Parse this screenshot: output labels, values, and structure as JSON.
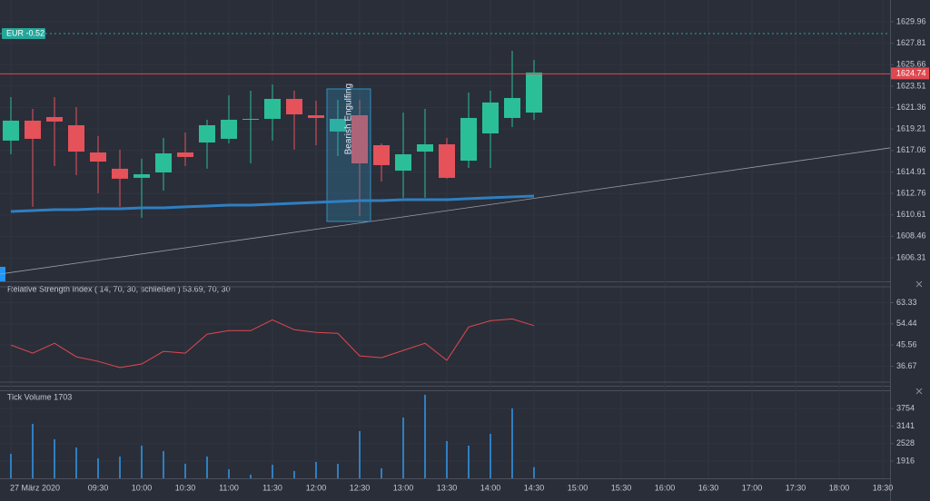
{
  "chart_data": [
    {
      "type": "candlestick",
      "categories": [
        "27 März 2020",
        null,
        null,
        null,
        "09:30",
        null,
        "10:00",
        null,
        "10:30",
        null,
        "11:00",
        null,
        "11:30",
        null,
        "12:00",
        null,
        "12:30",
        null,
        "13:00",
        null,
        "13:30",
        null,
        "14:00",
        null,
        "14:30",
        null,
        "15:00",
        null,
        "15:30",
        null,
        "16:00",
        null,
        "16:30",
        null,
        "17:00",
        null,
        "17:30",
        null,
        "18:00",
        null,
        "18:30"
      ],
      "open": [
        1618.05,
        1620.05,
        1620.41,
        1619.59,
        1616.86,
        1615.23,
        1614.32,
        1614.86,
        1616.86,
        1617.86,
        1618.23,
        1620.14,
        1620.23,
        1622.23,
        1620.59,
        1618.96,
        1620.59,
        1617.59,
        1615.04,
        1616.95,
        1617.68,
        1616.04,
        1618.77,
        1620.32,
        1620.86,
        null,
        null,
        null,
        null,
        null,
        null,
        null,
        null,
        null,
        null,
        null,
        null,
        null,
        null,
        null,
        null
      ],
      "high": [
        1622.41,
        1621.23,
        1622.41,
        1621.41,
        1618.5,
        1617.14,
        1616.23,
        1618.32,
        1618.86,
        1620.14,
        1622.59,
        1623.05,
        1623.68,
        1623.05,
        1622.05,
        1622.14,
        1622.14,
        1617.77,
        1620.86,
        1621.23,
        1618.32,
        1622.87,
        1623.05,
        1627.05,
        1626.14,
        null,
        null,
        null,
        null,
        null,
        null,
        null,
        null,
        null,
        null,
        null,
        null,
        null,
        null,
        null,
        null
      ],
      "low": [
        1616.68,
        1611.41,
        1615.5,
        1614.59,
        1612.77,
        1611.41,
        1610.31,
        1613.04,
        1615.5,
        1615.23,
        1617.77,
        1615.77,
        1618.05,
        1617.14,
        1617.59,
        1616.5,
        1610.5,
        1613.95,
        1612.32,
        1612.32,
        1614.23,
        1615.32,
        1615.32,
        1619.41,
        1620.14,
        null,
        null,
        null,
        null,
        null,
        null,
        null,
        null,
        null,
        null,
        null,
        null,
        null,
        null,
        null,
        null
      ],
      "close": [
        1620.05,
        1618.23,
        1619.96,
        1616.95,
        1615.95,
        1614.23,
        1614.68,
        1616.77,
        1616.41,
        1619.59,
        1620.14,
        1620.23,
        1622.23,
        1620.68,
        1620.32,
        1620.23,
        1615.77,
        1615.59,
        1616.68,
        1617.68,
        1614.32,
        1620.32,
        1621.87,
        1622.32,
        1624.87,
        null,
        null,
        null,
        null,
        null,
        null,
        null,
        null,
        null,
        null,
        null,
        null,
        null,
        null,
        null,
        null
      ],
      "up_color": "#2bbf97",
      "down_color": "#e5525a",
      "moving_average": {
        "color": "#2f7fc1",
        "values": [
          1610.95,
          1611.04,
          1611.13,
          1611.13,
          1611.22,
          1611.22,
          1611.31,
          1611.31,
          1611.41,
          1611.5,
          1611.59,
          1611.59,
          1611.68,
          1611.77,
          1611.86,
          1611.95,
          1612.04,
          1612.04,
          1612.13,
          1612.13,
          1612.13,
          1612.23,
          1612.32,
          1612.41,
          1612.5,
          null,
          null,
          null,
          null,
          null,
          null,
          null,
          null,
          null,
          null,
          null,
          null,
          null,
          null,
          null,
          null
        ]
      },
      "price_line": {
        "value": 1624.74,
        "color": "#e0484f"
      },
      "position_line": {
        "label": "EUR -0.52",
        "value": 1628.78,
        "color": "#26a69a"
      },
      "trend_line": {
        "start": 1604.68,
        "end": 1617.32,
        "color": "#9aa0aa"
      },
      "annotation": {
        "text": "Bearish Engulfing",
        "top": 1623.23,
        "bottom": 1609.95,
        "color": "#2f8fbf"
      },
      "ylim": [
        1604.31,
        1632.14
      ],
      "yticks": [
        1606.31,
        1608.46,
        1610.61,
        1612.76,
        1614.91,
        1617.06,
        1619.21,
        1621.36,
        1623.51,
        1625.66,
        1627.81,
        1629.96
      ]
    },
    {
      "type": "line",
      "title": "Relative Strength Index ( 14, 70, 30, schließen ) 53.69, 70, 30",
      "values": [
        45.55,
        42.15,
        46.31,
        40.63,
        38.74,
        36.09,
        37.61,
        42.9,
        42.15,
        50.09,
        51.6,
        51.6,
        56.14,
        51.98,
        50.85,
        50.47,
        41.01,
        40.25,
        43.28,
        46.31,
        39.12,
        53.12,
        55.76,
        56.52,
        53.69,
        null,
        null,
        null,
        null,
        null,
        null,
        null,
        null,
        null,
        null,
        null,
        null,
        null,
        null,
        null,
        null
      ],
      "color": "#e0484f",
      "levels": [
        70,
        30
      ],
      "ylim": [
        30,
        70
      ],
      "yticks": [
        36.67,
        45.56,
        54.44,
        63.33
      ]
    },
    {
      "type": "bar",
      "title": "Tick Volume 1703",
      "values": [
        2170,
        3218,
        2678,
        2392,
        2011,
        2075,
        2456,
        2265,
        1821,
        2075,
        1630,
        1440,
        1789,
        1567,
        1884,
        1821,
        2964,
        1662,
        3440,
        4234,
        2615,
        2456,
        2869,
        3758,
        1703,
        null,
        null,
        null,
        null,
        null,
        null,
        null,
        null,
        null,
        null,
        null,
        null,
        null,
        null,
        null,
        null
      ],
      "color": "#2f7fc1",
      "ylim": [
        1313,
        4393
      ],
      "yticks": [
        1916,
        2528,
        3141,
        3754
      ]
    }
  ]
}
